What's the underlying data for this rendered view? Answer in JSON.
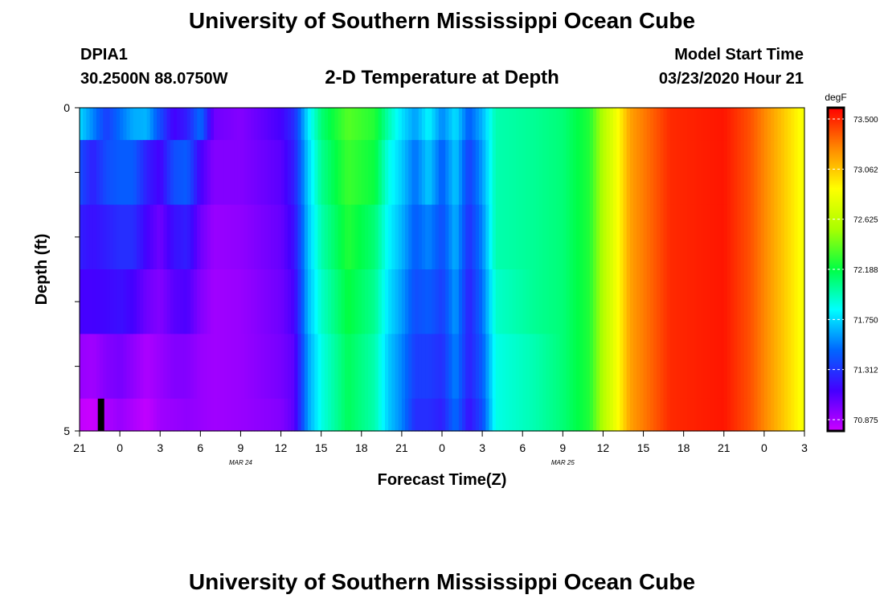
{
  "header": {
    "title": "University of Southern Mississippi Ocean Cube",
    "station": "DPIA1",
    "coords": "30.2500N 88.0750W",
    "subtitle": "2-D Temperature at Depth",
    "model_start_label": "Model Start Time",
    "model_start_value": "03/23/2020 Hour 21"
  },
  "footer": {
    "title": "University of Southern Mississippi Ocean Cube"
  },
  "chart_data": {
    "type": "heatmap",
    "title": "2-D Temperature at Depth",
    "xlabel": "Forecast Time(Z)",
    "ylabel": "Depth (ft)",
    "x_tick_labels": [
      "21",
      "0",
      "3",
      "6",
      "9",
      "12",
      "15",
      "18",
      "21",
      "0",
      "3",
      "6",
      "9",
      "12",
      "15",
      "18",
      "21",
      "0",
      "3"
    ],
    "x_date_labels": [
      {
        "label": "MAR 24",
        "hour_index": 12
      },
      {
        "label": "MAR 25",
        "hour_index": 36
      }
    ],
    "y_tick_labels": [
      "0",
      "5"
    ],
    "ylim": [
      0,
      5
    ],
    "x_hours": 54,
    "depths": [
      0,
      1,
      2,
      3,
      4,
      5
    ],
    "colorbar": {
      "unit": "degF",
      "tick_labels": [
        "73.500",
        "73.062",
        "72.625",
        "72.188",
        "71.750",
        "71.312",
        "70.875"
      ],
      "min": 70.875,
      "max": 73.5,
      "colors": [
        "#cc00ff",
        "#4400ff",
        "#0066ff",
        "#00ffff",
        "#00ff44",
        "#aaff00",
        "#ffff00",
        "#ff8800",
        "#ff0000"
      ]
    },
    "layers": [
      {
        "depth_range": "0-0.5 ft",
        "keyframes": [
          [
            0,
            71.78
          ],
          [
            1,
            71.6
          ],
          [
            2,
            71.4
          ],
          [
            3,
            71.55
          ],
          [
            4,
            71.68
          ],
          [
            5,
            71.7
          ],
          [
            6,
            71.45
          ],
          [
            7,
            71.2
          ],
          [
            8,
            71.3
          ],
          [
            9,
            71.55
          ],
          [
            10,
            71.1
          ],
          [
            12,
            71.05
          ],
          [
            15,
            71.2
          ],
          [
            16,
            71.35
          ],
          [
            17,
            71.8
          ],
          [
            18,
            72.1
          ],
          [
            20,
            72.35
          ],
          [
            22,
            72.25
          ],
          [
            23,
            72.0
          ],
          [
            24,
            71.8
          ],
          [
            25,
            71.65
          ],
          [
            26,
            71.85
          ],
          [
            27,
            71.6
          ],
          [
            28,
            71.8
          ],
          [
            29,
            71.5
          ],
          [
            30,
            71.7
          ],
          [
            31,
            72.0
          ],
          [
            34,
            72.05
          ],
          [
            36,
            72.1
          ],
          [
            38,
            72.25
          ],
          [
            39,
            72.55
          ],
          [
            40,
            72.8
          ],
          [
            41,
            73.1
          ],
          [
            44,
            73.4
          ],
          [
            48,
            73.45
          ],
          [
            50,
            73.3
          ],
          [
            52,
            73.05
          ],
          [
            54,
            72.8
          ]
        ]
      },
      {
        "depth_range": "0.5-1.5 ft",
        "keyframes": [
          [
            0,
            71.45
          ],
          [
            1,
            71.3
          ],
          [
            2,
            71.45
          ],
          [
            3,
            71.5
          ],
          [
            4,
            71.5
          ],
          [
            5,
            71.3
          ],
          [
            6,
            71.2
          ],
          [
            7,
            71.45
          ],
          [
            8,
            71.5
          ],
          [
            9,
            71.2
          ],
          [
            10,
            71.05
          ],
          [
            12,
            71.05
          ],
          [
            15,
            71.15
          ],
          [
            16,
            71.3
          ],
          [
            17,
            71.75
          ],
          [
            18,
            72.05
          ],
          [
            20,
            72.3
          ],
          [
            22,
            72.2
          ],
          [
            23,
            71.9
          ],
          [
            24,
            71.75
          ],
          [
            25,
            71.55
          ],
          [
            26,
            71.75
          ],
          [
            27,
            71.5
          ],
          [
            28,
            71.75
          ],
          [
            29,
            71.4
          ],
          [
            30,
            71.65
          ],
          [
            31,
            72.0
          ],
          [
            34,
            72.05
          ],
          [
            36,
            72.1
          ],
          [
            38,
            72.25
          ],
          [
            39,
            72.55
          ],
          [
            40,
            72.8
          ],
          [
            41,
            73.1
          ],
          [
            44,
            73.4
          ],
          [
            48,
            73.45
          ],
          [
            50,
            73.3
          ],
          [
            52,
            73.05
          ],
          [
            54,
            72.8
          ]
        ]
      },
      {
        "depth_range": "1.5-2.5 ft",
        "keyframes": [
          [
            0,
            71.3
          ],
          [
            1,
            71.25
          ],
          [
            2,
            71.3
          ],
          [
            3,
            71.35
          ],
          [
            4,
            71.35
          ],
          [
            5,
            71.2
          ],
          [
            6,
            71.1
          ],
          [
            7,
            71.25
          ],
          [
            8,
            71.3
          ],
          [
            9,
            71.1
          ],
          [
            10,
            71.0
          ],
          [
            12,
            71.02
          ],
          [
            15,
            71.12
          ],
          [
            16,
            71.25
          ],
          [
            17,
            71.72
          ],
          [
            18,
            72.0
          ],
          [
            20,
            72.25
          ],
          [
            22,
            72.1
          ],
          [
            23,
            71.85
          ],
          [
            24,
            71.7
          ],
          [
            25,
            71.5
          ],
          [
            26,
            71.6
          ],
          [
            27,
            71.45
          ],
          [
            28,
            71.7
          ],
          [
            29,
            71.35
          ],
          [
            30,
            71.6
          ],
          [
            31,
            72.0
          ],
          [
            34,
            72.05
          ],
          [
            36,
            72.1
          ],
          [
            38,
            72.25
          ],
          [
            39,
            72.55
          ],
          [
            40,
            72.8
          ],
          [
            41,
            73.1
          ],
          [
            44,
            73.4
          ],
          [
            48,
            73.45
          ],
          [
            50,
            73.3
          ],
          [
            52,
            73.05
          ],
          [
            54,
            72.8
          ]
        ]
      },
      {
        "depth_range": "2.5-3.5 ft",
        "keyframes": [
          [
            0,
            71.2
          ],
          [
            1,
            71.2
          ],
          [
            2,
            71.22
          ],
          [
            3,
            71.25
          ],
          [
            4,
            71.2
          ],
          [
            5,
            71.1
          ],
          [
            6,
            71.05
          ],
          [
            7,
            71.15
          ],
          [
            8,
            71.18
          ],
          [
            9,
            71.05
          ],
          [
            10,
            70.98
          ],
          [
            12,
            71.0
          ],
          [
            15,
            71.1
          ],
          [
            16,
            71.2
          ],
          [
            17,
            71.7
          ],
          [
            18,
            71.95
          ],
          [
            20,
            72.2
          ],
          [
            22,
            72.05
          ],
          [
            23,
            71.8
          ],
          [
            24,
            71.65
          ],
          [
            25,
            71.45
          ],
          [
            26,
            71.5
          ],
          [
            27,
            71.4
          ],
          [
            28,
            71.65
          ],
          [
            29,
            71.3
          ],
          [
            30,
            71.55
          ],
          [
            31,
            71.95
          ],
          [
            34,
            72.05
          ],
          [
            36,
            72.1
          ],
          [
            38,
            72.25
          ],
          [
            39,
            72.55
          ],
          [
            40,
            72.8
          ],
          [
            41,
            73.1
          ],
          [
            44,
            73.4
          ],
          [
            48,
            73.45
          ],
          [
            50,
            73.3
          ],
          [
            52,
            73.05
          ],
          [
            54,
            72.8
          ]
        ]
      },
      {
        "depth_range": "3.5-4.5 ft",
        "keyframes": [
          [
            0,
            71.0
          ],
          [
            1,
            70.98
          ],
          [
            2,
            71.05
          ],
          [
            3,
            71.08
          ],
          [
            4,
            71.02
          ],
          [
            5,
            70.95
          ],
          [
            6,
            71.0
          ],
          [
            7,
            71.05
          ],
          [
            8,
            71.05
          ],
          [
            9,
            71.0
          ],
          [
            10,
            70.98
          ],
          [
            12,
            71.0
          ],
          [
            15,
            71.08
          ],
          [
            16,
            71.15
          ],
          [
            17,
            71.65
          ],
          [
            18,
            71.9
          ],
          [
            20,
            72.15
          ],
          [
            22,
            72.0
          ],
          [
            23,
            71.75
          ],
          [
            24,
            71.6
          ],
          [
            25,
            71.4
          ],
          [
            26,
            71.4
          ],
          [
            27,
            71.35
          ],
          [
            28,
            71.6
          ],
          [
            29,
            71.3
          ],
          [
            30,
            71.5
          ],
          [
            31,
            71.9
          ],
          [
            34,
            72.0
          ],
          [
            36,
            72.1
          ],
          [
            38,
            72.25
          ],
          [
            39,
            72.55
          ],
          [
            40,
            72.8
          ],
          [
            41,
            73.1
          ],
          [
            44,
            73.4
          ],
          [
            48,
            73.45
          ],
          [
            50,
            73.3
          ],
          [
            52,
            73.05
          ],
          [
            54,
            72.8
          ]
        ]
      },
      {
        "depth_range": "4.5-5 ft",
        "keyframes": [
          [
            0,
            70.9
          ],
          [
            1,
            70.88
          ],
          [
            2,
            70.95
          ],
          [
            3,
            71.0
          ],
          [
            4,
            70.95
          ],
          [
            5,
            70.9
          ],
          [
            6,
            70.98
          ],
          [
            7,
            71.0
          ],
          [
            8,
            71.02
          ],
          [
            9,
            71.0
          ],
          [
            10,
            70.98
          ],
          [
            12,
            71.0
          ],
          [
            15,
            71.05
          ],
          [
            16,
            71.15
          ],
          [
            17,
            71.65
          ],
          [
            18,
            71.9
          ],
          [
            20,
            72.15
          ],
          [
            22,
            72.0
          ],
          [
            23,
            71.75
          ],
          [
            24,
            71.6
          ],
          [
            25,
            71.35
          ],
          [
            26,
            71.35
          ],
          [
            27,
            71.3
          ],
          [
            28,
            71.55
          ],
          [
            29,
            71.25
          ],
          [
            30,
            71.45
          ],
          [
            31,
            71.9
          ],
          [
            34,
            72.0
          ],
          [
            36,
            72.1
          ],
          [
            38,
            72.25
          ],
          [
            39,
            72.55
          ],
          [
            40,
            72.8
          ],
          [
            41,
            73.1
          ],
          [
            44,
            73.4
          ],
          [
            48,
            73.45
          ],
          [
            50,
            73.3
          ],
          [
            52,
            73.05
          ],
          [
            54,
            72.8
          ]
        ]
      }
    ],
    "black_marker": {
      "hour": 1.6,
      "depth_from": 4.5,
      "depth_to": 5
    }
  }
}
